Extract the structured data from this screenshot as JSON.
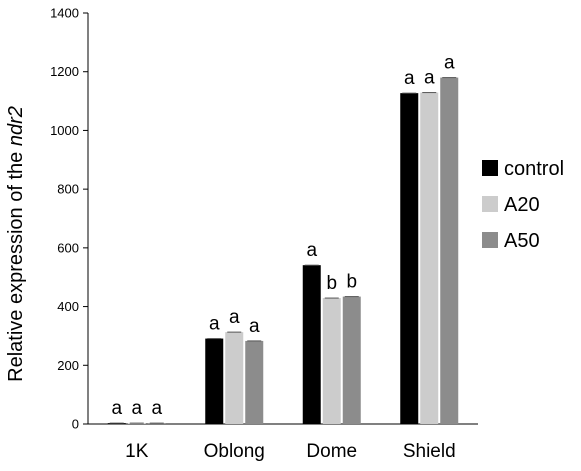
{
  "chart_data": {
    "type": "bar",
    "categories": [
      "1K",
      "Oblong",
      "Dome",
      "Shield"
    ],
    "series": [
      {
        "name": "control",
        "values": [
          3,
          291,
          541,
          1127
        ],
        "labels": [
          "a",
          "a",
          "a",
          "a"
        ],
        "color": "#000000"
      },
      {
        "name": "A20",
        "values": [
          3,
          313,
          429,
          1129
        ],
        "labels": [
          "a",
          "a",
          "b",
          "a"
        ],
        "color": "#cccccc"
      },
      {
        "name": "A50",
        "values": [
          3,
          283,
          434,
          1180
        ],
        "labels": [
          "a",
          "a",
          "b",
          "a"
        ],
        "color": "#8c8c8c"
      }
    ],
    "ylabel_prefix": "Relative expression of the ",
    "ylabel_gene": "ndr2",
    "ylim": [
      0,
      1400
    ],
    "yticks": [
      0,
      200,
      400,
      600,
      800,
      1000,
      1200,
      1400
    ],
    "legend_position": "right",
    "grid": false
  }
}
